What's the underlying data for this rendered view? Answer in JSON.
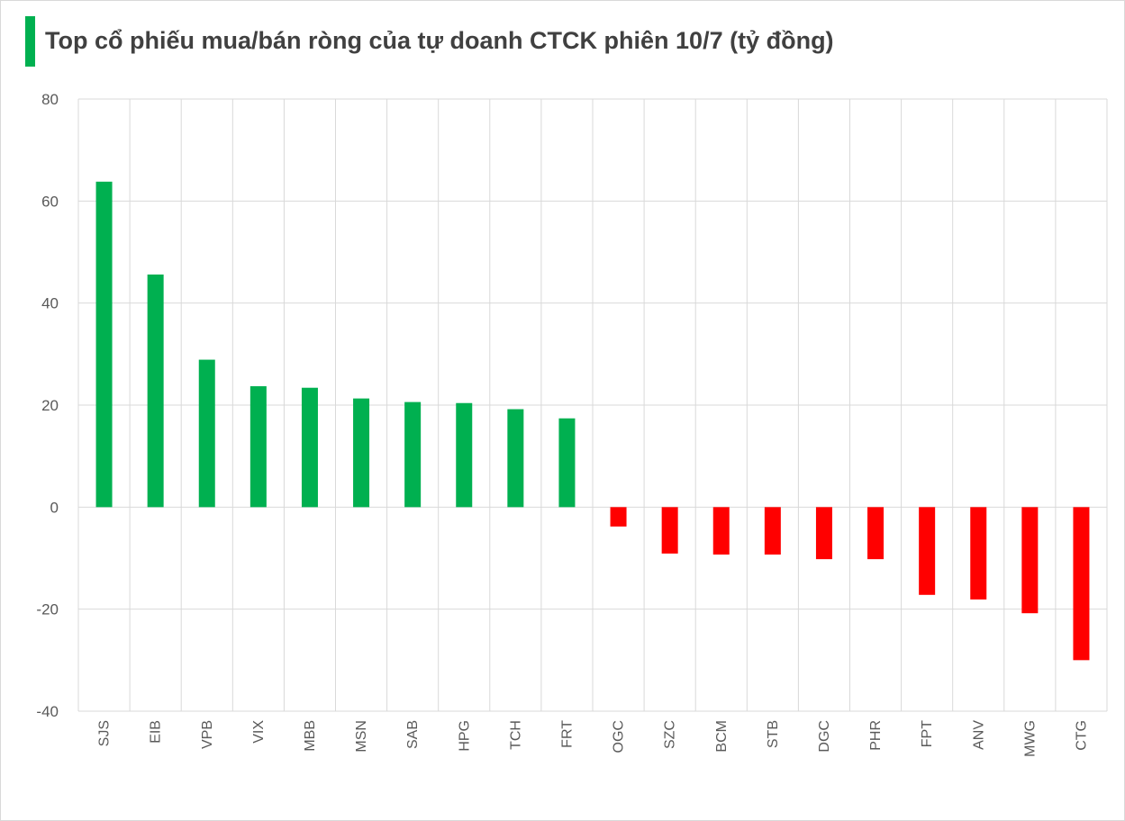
{
  "chart_data": {
    "type": "bar",
    "title": "Top cổ phiếu mua/bán ròng của tự doanh CTCK phiên 10/7 (tỷ đồng)",
    "xlabel": "",
    "ylabel": "",
    "ylim": [
      -40,
      80
    ],
    "yticks": [
      80,
      60,
      40,
      20,
      0,
      -20,
      -40
    ],
    "grid": true,
    "legend": "none",
    "positive_color": "#00b050",
    "negative_color": "#ff0000",
    "categories": [
      "SJS",
      "EIB",
      "VPB",
      "VIX",
      "MBB",
      "MSN",
      "SAB",
      "HPG",
      "TCH",
      "FRT",
      "OGC",
      "SZC",
      "BCM",
      "STB",
      "DGC",
      "PHR",
      "FPT",
      "ANV",
      "MWG",
      "CTG"
    ],
    "values": [
      63.8,
      45.6,
      28.9,
      23.7,
      23.4,
      21.3,
      20.6,
      20.4,
      19.2,
      17.4,
      -3.8,
      -9.1,
      -9.3,
      -9.3,
      -10.2,
      -10.2,
      -17.2,
      -18.1,
      -20.8,
      -30.0
    ]
  }
}
